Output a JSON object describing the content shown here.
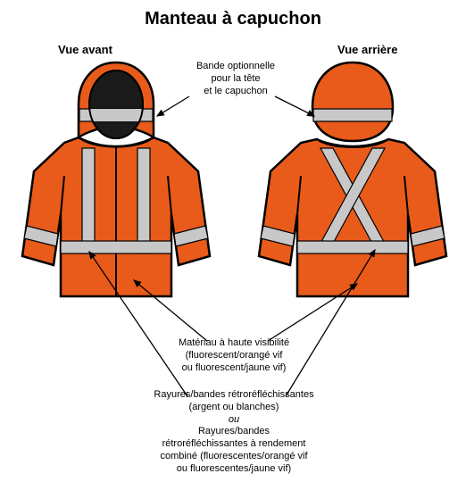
{
  "title": "Manteau à capuchon",
  "labels": {
    "front": "Vue avant",
    "back": "Vue arrière"
  },
  "captions": {
    "hood_band": "Bande optionnelle\npour la tête\net le capuchon",
    "material": "Matériau à haute visibilité\n(fluorescent/orangé vif\nou fluorescent/jaune vif)",
    "bands": "Rayures/bandes rétroréfléchissantes\n(argent ou blanches)\nou\nRayures/bandes\nrétroréfléchissantes à rendement\ncombiné (fluorescentes/orangé vif\nou fluorescentes/jaune vif)"
  },
  "colors": {
    "jacket": "#e85b1b",
    "band": "#c8c8c8",
    "outline": "#000000",
    "hood_face": "#1a1a1a",
    "bg": "#ffffff"
  }
}
